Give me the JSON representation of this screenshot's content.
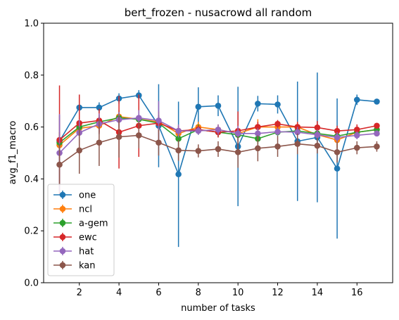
{
  "chart_data": {
    "type": "line",
    "title": "bert_frozen - nusacrowd all random",
    "xlabel": "number of tasks",
    "ylabel": "avg_f1_macro",
    "xlim": [
      0.2,
      17.8
    ],
    "ylim": [
      0.0,
      1.0
    ],
    "xticks": [
      2,
      4,
      6,
      8,
      10,
      12,
      14,
      16
    ],
    "yticks": [
      0.0,
      0.2,
      0.4,
      0.6,
      0.8,
      1.0
    ],
    "ytick_labels": [
      "0.0",
      "0.2",
      "0.4",
      "0.6",
      "0.8",
      "1.0"
    ],
    "grid": false,
    "legend_position": "lower-left",
    "x": [
      1,
      2,
      3,
      4,
      5,
      6,
      7,
      8,
      9,
      10,
      11,
      12,
      13,
      14,
      15,
      16,
      17
    ],
    "series": [
      {
        "name": "one",
        "color": "#1f77b4",
        "values": [
          0.545,
          0.675,
          0.675,
          0.71,
          0.722,
          0.605,
          0.418,
          0.678,
          0.682,
          0.525,
          0.69,
          0.687,
          0.545,
          0.56,
          0.44,
          0.705,
          0.698
        ],
        "errors": [
          0.1,
          0.05,
          0.02,
          0.02,
          0.02,
          0.16,
          0.28,
          0.075,
          0.04,
          0.23,
          0.03,
          0.035,
          0.23,
          0.25,
          0.27,
          0.02,
          0.01
        ]
      },
      {
        "name": "ncl",
        "color": "#ff7f0e",
        "values": [
          0.53,
          0.595,
          0.605,
          0.64,
          0.63,
          0.62,
          0.575,
          0.6,
          0.59,
          0.575,
          0.6,
          0.6,
          0.6,
          0.57,
          0.55,
          0.58,
          0.59
        ],
        "errors": [
          0.05,
          0.04,
          0.03,
          0.025,
          0.03,
          0.04,
          0.025,
          0.02,
          0.02,
          0.035,
          0.03,
          0.02,
          0.02,
          0.02,
          0.03,
          0.02,
          0.01
        ]
      },
      {
        "name": "a-gem",
        "color": "#2ca02c",
        "values": [
          0.54,
          0.6,
          0.62,
          0.635,
          0.63,
          0.615,
          0.555,
          0.59,
          0.58,
          0.57,
          0.555,
          0.58,
          0.585,
          0.575,
          0.565,
          0.58,
          0.59
        ],
        "errors": [
          0.04,
          0.03,
          0.025,
          0.02,
          0.02,
          0.03,
          0.03,
          0.02,
          0.02,
          0.02,
          0.02,
          0.015,
          0.02,
          0.02,
          0.02,
          0.015,
          0.01
        ]
      },
      {
        "name": "ewc",
        "color": "#d62728",
        "values": [
          0.55,
          0.615,
          0.625,
          0.58,
          0.605,
          0.615,
          0.585,
          0.59,
          0.58,
          0.585,
          0.6,
          0.612,
          0.6,
          0.598,
          0.585,
          0.59,
          0.605
        ],
        "errors": [
          0.21,
          0.11,
          0.045,
          0.14,
          0.12,
          0.03,
          0.02,
          0.015,
          0.02,
          0.075,
          0.02,
          0.015,
          0.02,
          0.025,
          0.02,
          0.02,
          0.01
        ]
      },
      {
        "name": "hat",
        "color": "#9467bd",
        "values": [
          0.5,
          0.578,
          0.612,
          0.628,
          0.635,
          0.625,
          0.585,
          0.585,
          0.59,
          0.575,
          0.575,
          0.582,
          0.58,
          0.57,
          0.56,
          0.568,
          0.575
        ],
        "errors": [
          0.15,
          0.05,
          0.04,
          0.03,
          0.03,
          0.075,
          0.025,
          0.015,
          0.02,
          0.03,
          0.02,
          0.015,
          0.02,
          0.02,
          0.02,
          0.015,
          0.01
        ]
      },
      {
        "name": "kan",
        "color": "#8c564b",
        "values": [
          0.455,
          0.51,
          0.54,
          0.562,
          0.568,
          0.54,
          0.51,
          0.508,
          0.515,
          0.503,
          0.518,
          0.525,
          0.535,
          0.528,
          0.503,
          0.52,
          0.525
        ],
        "errors": [
          0.08,
          0.09,
          0.09,
          0.08,
          0.05,
          0.05,
          0.04,
          0.025,
          0.03,
          0.06,
          0.05,
          0.04,
          0.04,
          0.03,
          0.04,
          0.025,
          0.02
        ]
      }
    ]
  }
}
